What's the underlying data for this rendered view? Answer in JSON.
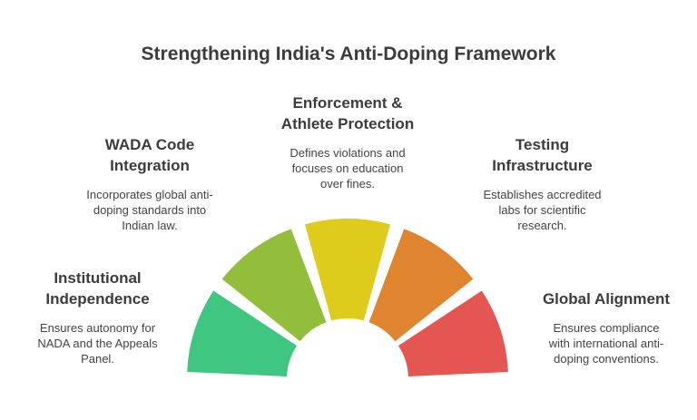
{
  "title": "Strengthening India's Anti-Doping Framework",
  "segments": [
    {
      "heading_lines": [
        "Institutional",
        "Independence"
      ],
      "desc_lines": [
        "Ensures autonomy for",
        "NADA and the Appeals",
        "Panel."
      ],
      "color": "#3fc680"
    },
    {
      "heading_lines": [
        "WADA Code",
        "Integration"
      ],
      "desc_lines": [
        "Incorporates global anti-",
        "doping standards into",
        "Indian law."
      ],
      "color": "#93be3c"
    },
    {
      "heading_lines": [
        "Enforcement &",
        "Athlete Protection"
      ],
      "desc_lines": [
        "Defines violations and",
        "focuses on education",
        "over fines."
      ],
      "color": "#dfcb1b"
    },
    {
      "heading_lines": [
        "Testing",
        "Infrastructure"
      ],
      "desc_lines": [
        "Establishes accredited",
        "labs for scientific",
        "research."
      ],
      "color": "#e0852f"
    },
    {
      "heading_lines": [
        "Global Alignment"
      ],
      "desc_lines": [
        "Ensures compliance",
        "with international anti-",
        "doping conventions."
      ],
      "color": "#e45652"
    }
  ]
}
